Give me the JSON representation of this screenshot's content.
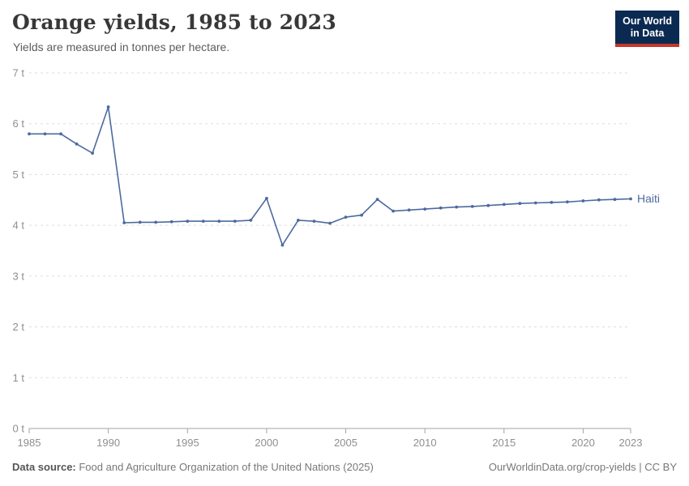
{
  "header": {
    "title": "Orange yields, 1985 to 2023",
    "subtitle": "Yields are measured in tonnes per hectare."
  },
  "logo": {
    "line1": "Our World",
    "line2": "in Data"
  },
  "footer": {
    "source_label": "Data source:",
    "source_text": " Food and Agriculture Organization of the United Nations (2025)",
    "credit": "OurWorldinData.org/crop-yields | CC BY"
  },
  "colors": {
    "line": "#4c6a9f",
    "logo_bg": "#0b2a51",
    "logo_stripe": "#c5372c",
    "grid": "#dddddd",
    "axis": "#a3a3a3",
    "tick_text": "#8f8f8f"
  },
  "chart_data": {
    "type": "line",
    "title": "Orange yields, 1985 to 2023",
    "subtitle": "Yields are measured in tonnes per hectare.",
    "xlabel": "",
    "ylabel": "tonnes per hectare",
    "unit": "t",
    "xlim": [
      1985,
      2023
    ],
    "ylim": [
      0,
      7
    ],
    "grid": "horizontal-dashed",
    "legend_position": "end-of-line-label",
    "xticks": [
      1985,
      1990,
      1995,
      2000,
      2005,
      2010,
      2015,
      2020,
      2023
    ],
    "yticks": [
      0,
      1,
      2,
      3,
      4,
      5,
      6,
      7
    ],
    "series": [
      {
        "name": "Haiti",
        "color": "#4c6a9f",
        "x": [
          1985,
          1986,
          1987,
          1988,
          1989,
          1990,
          1991,
          1992,
          1993,
          1994,
          1995,
          1996,
          1997,
          1998,
          1999,
          2000,
          2001,
          2002,
          2003,
          2004,
          2005,
          2006,
          2007,
          2008,
          2009,
          2010,
          2011,
          2012,
          2013,
          2014,
          2015,
          2016,
          2017,
          2018,
          2019,
          2020,
          2021,
          2022,
          2023
        ],
        "values": [
          5.8,
          5.8,
          5.8,
          5.6,
          5.42,
          6.33,
          4.05,
          4.06,
          4.06,
          4.07,
          4.08,
          4.08,
          4.08,
          4.08,
          4.1,
          4.53,
          3.61,
          4.1,
          4.08,
          4.04,
          4.16,
          4.2,
          4.51,
          4.28,
          4.3,
          4.32,
          4.34,
          4.36,
          4.37,
          4.39,
          4.41,
          4.43,
          4.44,
          4.45,
          4.46,
          4.48,
          4.5,
          4.51,
          4.52
        ]
      }
    ]
  }
}
